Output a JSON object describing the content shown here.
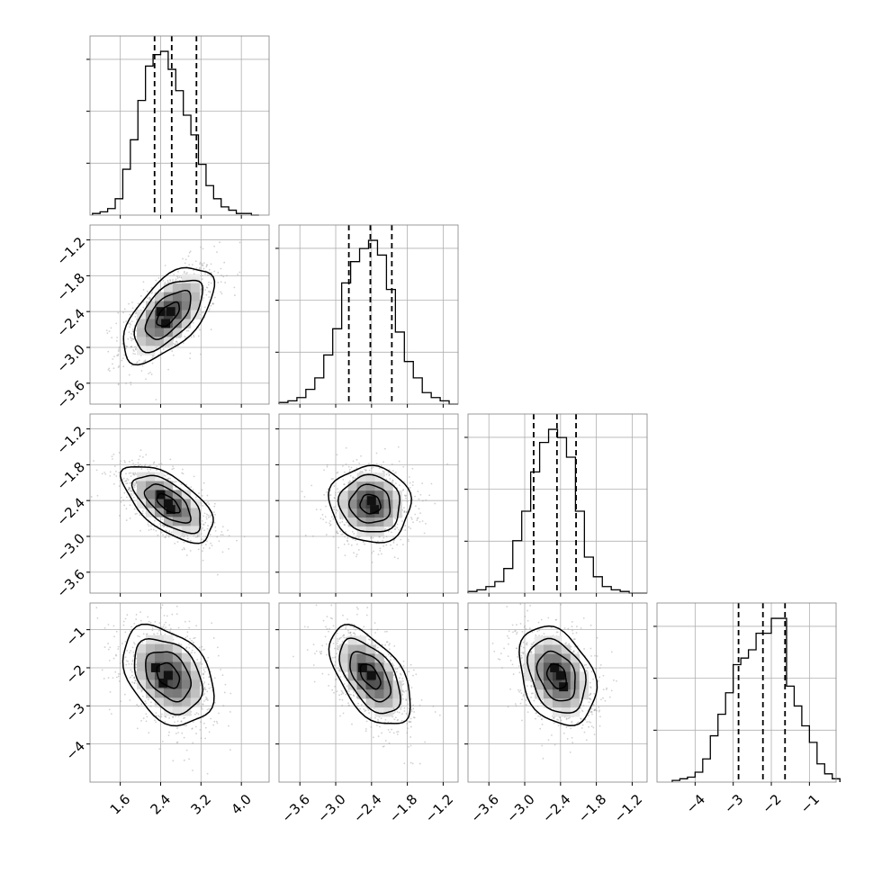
{
  "chart_data": {
    "type": "corner",
    "parameters": [
      {
        "index": 0,
        "xlim": [
          1.0,
          4.55
        ],
        "ticks": [
          1.6,
          2.4,
          3.2,
          4.0
        ],
        "tick_labels": [
          "1.6",
          "2.4",
          "3.2",
          "4.0"
        ],
        "quantiles": [
          2.28,
          2.62,
          3.11
        ],
        "hist_edges": [
          1.05,
          1.2,
          1.35,
          1.5,
          1.65,
          1.8,
          1.95,
          2.1,
          2.25,
          2.4,
          2.55,
          2.7,
          2.85,
          3.0,
          3.15,
          3.3,
          3.45,
          3.6,
          3.75,
          3.9,
          4.05,
          4.2,
          4.35
        ],
        "hist_counts": [
          0.01,
          0.02,
          0.04,
          0.1,
          0.28,
          0.46,
          0.7,
          0.91,
          0.98,
          1.0,
          0.89,
          0.76,
          0.61,
          0.49,
          0.31,
          0.18,
          0.1,
          0.05,
          0.03,
          0.01,
          0.01,
          0.0
        ]
      },
      {
        "index": 1,
        "xlim": [
          -3.95,
          -0.95
        ],
        "ticks": [
          -3.6,
          -3.0,
          -2.4,
          -1.8,
          -1.2
        ],
        "tick_labels": [
          "−3.6",
          "−3.0",
          "−2.4",
          "−1.8",
          "−1.2"
        ],
        "quantiles": [
          -2.78,
          -2.42,
          -2.06
        ],
        "hist_edges": [
          -3.95,
          -3.8,
          -3.65,
          -3.5,
          -3.35,
          -3.2,
          -3.05,
          -2.9,
          -2.75,
          -2.6,
          -2.45,
          -2.3,
          -2.15,
          -2.0,
          -1.85,
          -1.7,
          -1.55,
          -1.4,
          -1.25,
          -1.1,
          -0.95
        ],
        "hist_counts": [
          0.01,
          0.02,
          0.04,
          0.09,
          0.16,
          0.3,
          0.46,
          0.74,
          0.87,
          0.95,
          1.0,
          0.91,
          0.7,
          0.44,
          0.26,
          0.16,
          0.07,
          0.04,
          0.02,
          0.0
        ]
      },
      {
        "index": 2,
        "xlim": [
          -3.95,
          -0.95
        ],
        "ticks": [
          -3.6,
          -3.0,
          -2.4,
          -1.8,
          -1.2
        ],
        "tick_labels": [
          "−3.6",
          "−3.0",
          "−2.4",
          "−1.8",
          "−1.2"
        ],
        "quantiles": [
          -2.85,
          -2.46,
          -2.14
        ],
        "hist_edges": [
          -3.95,
          -3.8,
          -3.65,
          -3.5,
          -3.35,
          -3.2,
          -3.05,
          -2.9,
          -2.75,
          -2.6,
          -2.45,
          -2.3,
          -2.15,
          -2.0,
          -1.85,
          -1.7,
          -1.55,
          -1.4,
          -1.25,
          -1.1,
          -0.95
        ],
        "hist_counts": [
          0.01,
          0.02,
          0.04,
          0.07,
          0.15,
          0.32,
          0.5,
          0.74,
          0.92,
          1.0,
          0.95,
          0.83,
          0.5,
          0.22,
          0.1,
          0.04,
          0.02,
          0.01,
          0.0,
          0.0
        ]
      },
      {
        "index": 3,
        "xlim": [
          -5.0,
          -0.3
        ],
        "ticks": [
          -4,
          -3,
          -2,
          -1
        ],
        "tick_labels": [
          "−4",
          "−3",
          "−2",
          "−1"
        ],
        "quantiles": [
          -2.86,
          -2.22,
          -1.64
        ],
        "hist_edges": [
          -4.6,
          -4.4,
          -4.2,
          -4.0,
          -3.8,
          -3.6,
          -3.4,
          -3.2,
          -3.0,
          -2.8,
          -2.6,
          -2.4,
          -2.2,
          -2.0,
          -1.8,
          -1.6,
          -1.4,
          -1.2,
          -1.0,
          -0.8,
          -0.6,
          -0.4,
          -0.2
        ],
        "hist_counts": [
          0.01,
          0.02,
          0.03,
          0.06,
          0.14,
          0.28,
          0.41,
          0.54,
          0.71,
          0.75,
          0.8,
          0.9,
          0.9,
          0.99,
          0.99,
          0.58,
          0.46,
          0.34,
          0.24,
          0.11,
          0.05,
          0.02
        ]
      }
    ],
    "pairs": [
      {
        "row": 1,
        "col": 0,
        "center": [
          2.55,
          -2.45
        ],
        "sigma": [
          0.45,
          0.4
        ],
        "rho": 0.6,
        "dense_cells": [
          [
            2.4,
            -2.4
          ],
          [
            2.6,
            -2.4
          ],
          [
            2.5,
            -2.6
          ]
        ]
      },
      {
        "row": 2,
        "col": 0,
        "center": [
          2.55,
          -2.45
        ],
        "sigma": [
          0.45,
          0.32
        ],
        "rho": -0.62,
        "dense_cells": [
          [
            2.4,
            -2.3
          ],
          [
            2.55,
            -2.45
          ],
          [
            2.6,
            -2.55
          ]
        ]
      },
      {
        "row": 2,
        "col": 1,
        "center": [
          -2.42,
          -2.46
        ],
        "sigma": [
          0.34,
          0.32
        ],
        "rho": -0.05,
        "dense_cells": [
          [
            -2.4,
            -2.4
          ],
          [
            -2.35,
            -2.55
          ]
        ]
      },
      {
        "row": 3,
        "col": 0,
        "center": [
          2.55,
          -2.2
        ],
        "sigma": [
          0.45,
          0.65
        ],
        "rho": -0.35,
        "dense_cells": [
          [
            2.3,
            -2.0
          ],
          [
            2.55,
            -2.2
          ],
          [
            2.45,
            -2.4
          ]
        ]
      },
      {
        "row": 3,
        "col": 1,
        "center": [
          -2.42,
          -2.22
        ],
        "sigma": [
          0.34,
          0.65
        ],
        "rho": -0.55,
        "dense_cells": [
          [
            -2.55,
            -2.0
          ],
          [
            -2.4,
            -2.2
          ]
        ]
      },
      {
        "row": 3,
        "col": 2,
        "center": [
          -2.46,
          -2.22
        ],
        "sigma": [
          0.32,
          0.65
        ],
        "rho": -0.3,
        "dense_cells": [
          [
            -2.5,
            -2.0
          ],
          [
            -2.4,
            -2.2
          ],
          [
            -2.35,
            -2.5
          ]
        ]
      }
    ],
    "grid": true,
    "colors": {
      "hist_line": "#000000",
      "scatter": "#999999",
      "contour": "#000000",
      "grid": "#b0b0b0",
      "frame": "#7f7f7f"
    }
  }
}
